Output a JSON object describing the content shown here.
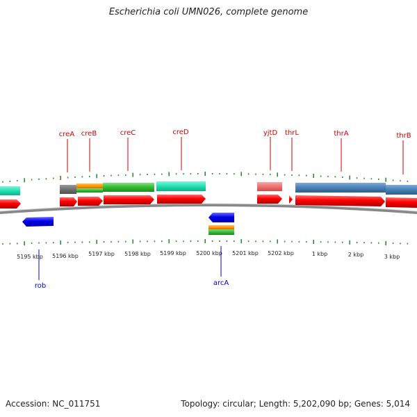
{
  "title": "Escherichia coli UMN026, complete genome",
  "footer": {
    "accession_label": "Accession:",
    "accession": "NC_011751",
    "topology_label": "Topology:",
    "topology": "circular",
    "length_label": "Length:",
    "length": "5,202,090 bp",
    "genes_label": "Genes:",
    "genes": "5,014"
  },
  "colors": {
    "forward_gene": "#ff0000",
    "reverse_gene": "#0000ee",
    "forward_label": "#cc0000",
    "reverse_label": "#0000cc",
    "tick": "#2e8b2e",
    "backbone": "#808080"
  },
  "scale_labels": [
    "5195 kbp",
    "5196 kbp",
    "5197 kbp",
    "5198 kbp",
    "5199 kbp",
    "5200 kbp",
    "5201 kbp",
    "5202 kbp",
    "1 kbp",
    "2 kbp",
    "3 kbp"
  ],
  "forward_gene_labels": [
    "creA",
    "creB",
    "creC",
    "creD",
    "yjtD",
    "thrL",
    "thrA",
    "thrB"
  ],
  "reverse_gene_labels": [
    "rob",
    "arcA"
  ]
}
